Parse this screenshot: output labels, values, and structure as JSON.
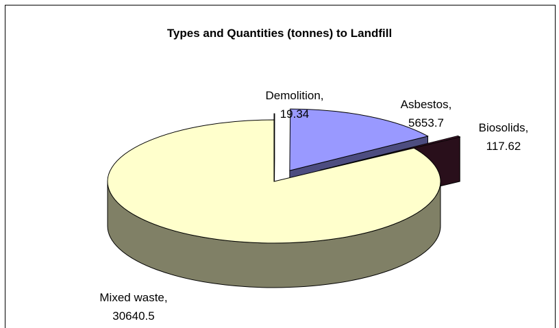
{
  "chart_data": {
    "type": "pie3d",
    "title": "Types and Quantities (tonnes) to Landfill",
    "categories": [
      "Demolition,",
      "Asbestos,",
      "Biosolids,",
      "Mixed waste,"
    ],
    "values": [
      19.34,
      5653.7,
      117.62,
      30640.5
    ],
    "colors": [
      "#ffffff",
      "#9999ff",
      "#511d36",
      "#ffffcc"
    ]
  }
}
